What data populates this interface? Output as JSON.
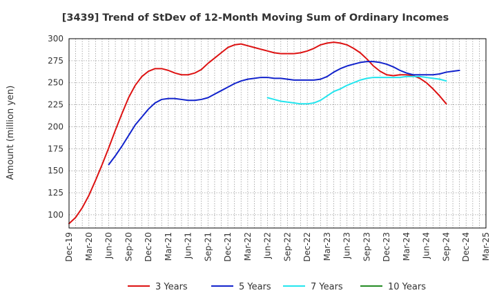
{
  "chart_data": {
    "type": "line",
    "title": "[3439]  Trend of StDev of 12-Month Moving Sum of Ordinary Incomes",
    "ylabel": "Amount (million yen)",
    "xlabel": "",
    "ylim": [
      85,
      300
    ],
    "yticks": [
      100,
      125,
      150,
      175,
      200,
      225,
      250,
      275,
      300
    ],
    "xticks": [
      "Dec-19",
      "Mar-20",
      "Jun-20",
      "Sep-20",
      "Dec-20",
      "Mar-21",
      "Jun-21",
      "Sep-21",
      "Dec-21",
      "Mar-22",
      "Jun-22",
      "Sep-22",
      "Dec-22",
      "Mar-23",
      "Jun-23",
      "Sep-23",
      "Dec-23",
      "Mar-24",
      "Jun-24",
      "Sep-24",
      "Dec-24",
      "Mar-25"
    ],
    "grid": true,
    "legend_position": "bottom",
    "series": [
      {
        "name": "3 Years",
        "color": "#dd1111",
        "start": "Dec-19",
        "values": [
          90,
          97,
          108,
          122,
          139,
          157,
          176,
          196,
          215,
          233,
          247,
          257,
          263,
          266,
          266,
          264,
          261,
          259,
          259,
          261,
          265,
          272,
          278,
          284,
          290,
          293,
          294,
          292,
          290,
          288,
          286,
          284,
          283,
          283,
          283,
          284,
          286,
          289,
          293,
          295,
          296,
          295,
          293,
          289,
          284,
          277,
          269,
          263,
          259,
          258,
          259,
          259,
          258,
          255,
          250,
          243,
          235,
          226
        ]
      },
      {
        "name": "5 Years",
        "color": "#1122cc",
        "start": "Jun-20",
        "values": [
          157,
          167,
          178,
          190,
          202,
          211,
          220,
          227,
          231,
          232,
          232,
          231,
          230,
          230,
          231,
          233,
          237,
          241,
          245,
          249,
          252,
          254,
          255,
          256,
          256,
          255,
          255,
          254,
          253,
          253,
          253,
          253,
          254,
          257,
          262,
          266,
          269,
          271,
          273,
          274,
          274,
          273,
          271,
          268,
          264,
          261,
          259,
          259,
          259,
          259,
          260,
          262,
          263,
          264
        ]
      },
      {
        "name": "7 Years",
        "color": "#22e5ee",
        "start": "Jun-22",
        "values": [
          233,
          231,
          229,
          228,
          227,
          226,
          226,
          227,
          230,
          235,
          240,
          243,
          247,
          250,
          253,
          255,
          256,
          256,
          256,
          256,
          256,
          257,
          257,
          257,
          256,
          255,
          254,
          252
        ]
      },
      {
        "name": "10 Years",
        "color": "#228b22",
        "start": "Dec-19",
        "values": []
      }
    ]
  }
}
